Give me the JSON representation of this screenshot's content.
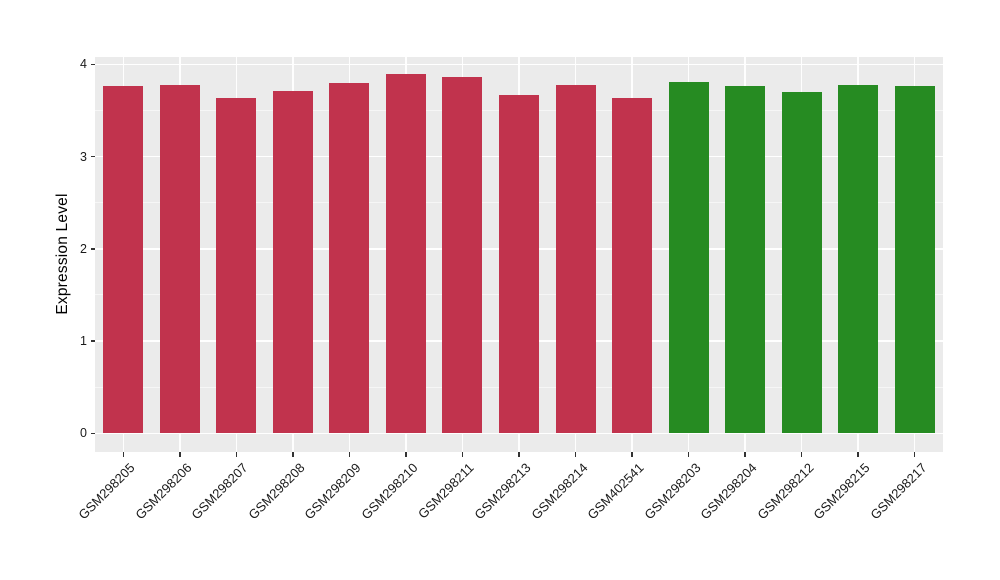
{
  "page": {
    "background": "#FFFFFF"
  },
  "chart_data": {
    "type": "bar",
    "title": "",
    "xlabel": "",
    "ylabel": "Expression Level",
    "ylim": [
      0,
      4
    ],
    "yticks": [
      0,
      1,
      2,
      3,
      4
    ],
    "minor_yticks": [
      0.5,
      1.5,
      2.5,
      3.5
    ],
    "grid": "on",
    "legend": "none",
    "panel_background": "#EBEBEB",
    "gridline_color": "#FFFFFF",
    "tick_color": "#333333",
    "group_colors": {
      "red_group": "#C1334D",
      "green_group": "#268B22"
    },
    "categories": [
      "GSM298205",
      "GSM298206",
      "GSM298207",
      "GSM298208",
      "GSM298209",
      "GSM298210",
      "GSM298211",
      "GSM298213",
      "GSM298214",
      "GSM402541",
      "GSM298203",
      "GSM298204",
      "GSM298212",
      "GSM298215",
      "GSM298217"
    ],
    "values": [
      3.77,
      3.78,
      3.64,
      3.71,
      3.8,
      3.89,
      3.86,
      3.67,
      3.78,
      3.63,
      3.81,
      3.77,
      3.7,
      3.78,
      3.76
    ],
    "bar_colors": [
      "#C1334D",
      "#C1334D",
      "#C1334D",
      "#C1334D",
      "#C1334D",
      "#C1334D",
      "#C1334D",
      "#C1334D",
      "#C1334D",
      "#C1334D",
      "#268B22",
      "#268B22",
      "#268B22",
      "#268B22",
      "#268B22"
    ]
  }
}
